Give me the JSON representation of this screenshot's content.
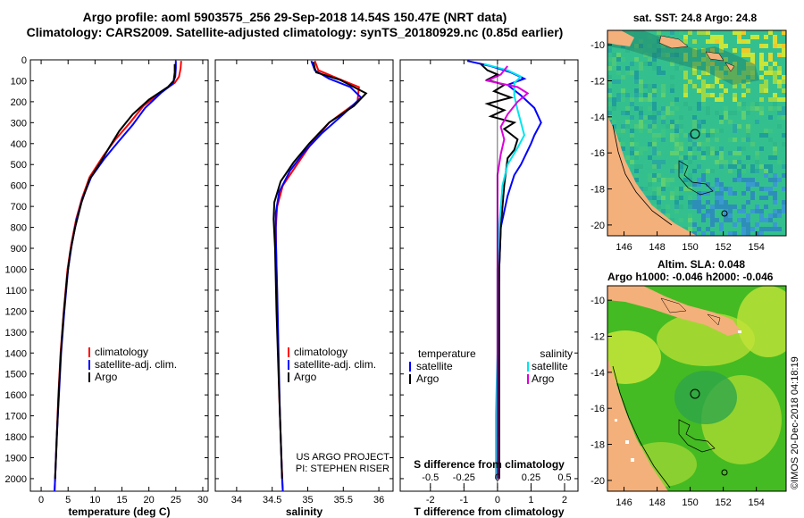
{
  "title_line1": "Argo profile: aoml 5903575_256 29-Sep-2018 14.54S 150.47E (NRT data)",
  "title_line2": "Climatology: CARS2009. Satellite-adjusted climatology: synTS_20180929.nc (0.85d earlier)",
  "colors": {
    "climatology": "#ff0000",
    "satellite": "#0000ff",
    "argo": "#000000",
    "sat_salinity": "#00e5ee",
    "argo_salinity": "#dd00dd"
  },
  "chart_data": [
    {
      "type": "line",
      "name": "temperature-profile",
      "xlabel": "temperature (deg C)",
      "xlim": [
        -2,
        31
      ],
      "ylim": [
        2060,
        0
      ],
      "xticks": [
        0,
        5,
        10,
        15,
        20,
        25,
        30
      ],
      "yticks": [
        0,
        100,
        200,
        300,
        400,
        500,
        600,
        700,
        800,
        900,
        1000,
        1100,
        1200,
        1300,
        1400,
        1500,
        1600,
        1700,
        1800,
        1900,
        2000
      ],
      "legend": [
        "climatology",
        "satellite-adj. clim.",
        "Argo"
      ],
      "series": [
        {
          "name": "climatology",
          "color": "#ff0000",
          "points": [
            [
              26.0,
              5
            ],
            [
              25.9,
              40
            ],
            [
              25.6,
              80
            ],
            [
              24.8,
              110
            ],
            [
              22.5,
              150
            ],
            [
              19.0,
              220
            ],
            [
              16.5,
              300
            ],
            [
              13.8,
              380
            ],
            [
              11.5,
              460
            ],
            [
              9.0,
              560
            ],
            [
              7.6,
              660
            ],
            [
              6.5,
              760
            ],
            [
              5.6,
              880
            ],
            [
              4.9,
              1000
            ],
            [
              4.2,
              1200
            ],
            [
              3.6,
              1400
            ],
            [
              3.2,
              1600
            ],
            [
              2.9,
              1800
            ],
            [
              2.6,
              2000
            ],
            [
              2.5,
              2060
            ]
          ]
        },
        {
          "name": "satellite-adj. clim.",
          "color": "#0000ff",
          "points": [
            [
              25.0,
              5
            ],
            [
              25.0,
              40
            ],
            [
              24.9,
              80
            ],
            [
              24.4,
              115
            ],
            [
              22.4,
              155
            ],
            [
              19.3,
              230
            ],
            [
              17.0,
              310
            ],
            [
              14.2,
              395
            ],
            [
              11.8,
              470
            ],
            [
              9.3,
              560
            ],
            [
              7.7,
              660
            ],
            [
              6.6,
              760
            ],
            [
              5.7,
              880
            ],
            [
              5.0,
              1000
            ],
            [
              4.3,
              1200
            ],
            [
              3.7,
              1400
            ],
            [
              3.3,
              1600
            ],
            [
              2.9,
              1800
            ],
            [
              2.6,
              2000
            ],
            [
              2.5,
              2060
            ]
          ]
        },
        {
          "name": "Argo",
          "color": "#000000",
          "points": [
            [
              24.8,
              20
            ],
            [
              24.8,
              60
            ],
            [
              24.6,
              100
            ],
            [
              23.5,
              130
            ],
            [
              20.0,
              190
            ],
            [
              17.0,
              260
            ],
            [
              14.5,
              340
            ],
            [
              12.6,
              420
            ],
            [
              11.0,
              490
            ],
            [
              9.0,
              570
            ],
            [
              7.5,
              680
            ],
            [
              6.3,
              800
            ],
            [
              5.4,
              920
            ],
            [
              4.8,
              1040
            ],
            [
              4.1,
              1240
            ],
            [
              3.6,
              1420
            ],
            [
              3.2,
              1620
            ],
            [
              2.9,
              1820
            ],
            [
              2.6,
              2000
            ]
          ]
        }
      ]
    },
    {
      "type": "line",
      "name": "salinity-profile",
      "xlabel": "salinity",
      "xlim": [
        33.7,
        36.2
      ],
      "ylim": [
        2060,
        0
      ],
      "xticks": [
        34,
        34.5,
        35,
        35.5,
        36
      ],
      "legend": [
        "climatology",
        "satellite-adj. clim.",
        "Argo"
      ],
      "credit": [
        "US ARGO PROJECT",
        "PI: STEPHEN RISER"
      ],
      "series": [
        {
          "name": "climatology",
          "color": "#ff0000",
          "points": [
            [
              35.1,
              5
            ],
            [
              35.15,
              50
            ],
            [
              35.5,
              100
            ],
            [
              35.72,
              130
            ],
            [
              35.7,
              200
            ],
            [
              35.3,
              300
            ],
            [
              35.05,
              400
            ],
            [
              34.85,
              500
            ],
            [
              34.65,
              600
            ],
            [
              34.57,
              700
            ],
            [
              34.55,
              800
            ],
            [
              34.56,
              1000
            ],
            [
              34.58,
              1300
            ],
            [
              34.6,
              1600
            ],
            [
              34.63,
              1900
            ],
            [
              34.65,
              2060
            ]
          ]
        },
        {
          "name": "satellite-adj. clim.",
          "color": "#0000ff",
          "points": [
            [
              35.05,
              5
            ],
            [
              35.1,
              50
            ],
            [
              35.3,
              90
            ],
            [
              35.6,
              130
            ],
            [
              35.75,
              180
            ],
            [
              35.5,
              260
            ],
            [
              35.2,
              350
            ],
            [
              34.95,
              440
            ],
            [
              34.75,
              530
            ],
            [
              34.6,
              630
            ],
            [
              34.55,
              730
            ],
            [
              34.55,
              850
            ],
            [
              34.57,
              1100
            ],
            [
              34.59,
              1400
            ],
            [
              34.61,
              1700
            ],
            [
              34.64,
              2000
            ],
            [
              34.65,
              2060
            ]
          ]
        },
        {
          "name": "Argo",
          "color": "#000000",
          "points": [
            [
              35.08,
              10
            ],
            [
              35.1,
              40
            ],
            [
              35.12,
              60
            ],
            [
              35.45,
              95
            ],
            [
              35.82,
              160
            ],
            [
              35.65,
              220
            ],
            [
              35.3,
              300
            ],
            [
              35.02,
              400
            ],
            [
              34.8,
              490
            ],
            [
              34.62,
              580
            ],
            [
              34.53,
              680
            ],
            [
              34.52,
              760
            ],
            [
              34.54,
              900
            ],
            [
              34.56,
              1200
            ],
            [
              34.59,
              1500
            ],
            [
              34.62,
              1800
            ],
            [
              34.64,
              2000
            ]
          ]
        }
      ]
    },
    {
      "type": "line",
      "name": "difference-profile",
      "xlabel": "T difference from climatology",
      "xlabel2": "S difference from climatology",
      "xlim": [
        -2.9,
        2.4
      ],
      "ylim": [
        2060,
        0
      ],
      "xticks": [
        -2,
        -1,
        0,
        1,
        2
      ],
      "xticks2": [
        -0.5,
        -0.25,
        0,
        0.25,
        0.5
      ],
      "xticks2_labels": [
        "-0.5",
        "-0.25",
        "0",
        "0.25",
        "0.5"
      ],
      "legend_left_title": "temperature",
      "legend_left": [
        "satellite",
        "Argo"
      ],
      "legend_right_title": "salinity",
      "legend_right": [
        "satellite",
        "Argo"
      ],
      "series": [
        {
          "name": "T satellite",
          "color": "#0000ff",
          "points": [
            [
              -0.9,
              5
            ],
            [
              -0.2,
              30
            ],
            [
              0.4,
              60
            ],
            [
              0.8,
              90
            ],
            [
              0.3,
              120
            ],
            [
              0.7,
              170
            ],
            [
              1.1,
              230
            ],
            [
              1.3,
              300
            ],
            [
              1.1,
              360
            ],
            [
              1.0,
              400
            ],
            [
              0.7,
              500
            ],
            [
              0.5,
              550
            ],
            [
              0.3,
              650
            ],
            [
              0.1,
              800
            ],
            [
              0.05,
              1000
            ],
            [
              0.0,
              1500
            ],
            [
              0.0,
              1800
            ]
          ]
        },
        {
          "name": "T Argo",
          "color": "#000000",
          "points": [
            [
              -0.5,
              20
            ],
            [
              -0.3,
              50
            ],
            [
              0.0,
              70
            ],
            [
              -0.3,
              95
            ],
            [
              0.2,
              120
            ],
            [
              -0.1,
              150
            ],
            [
              0.4,
              180
            ],
            [
              -0.3,
              210
            ],
            [
              0.2,
              240
            ],
            [
              -0.2,
              270
            ],
            [
              0.5,
              300
            ],
            [
              0.2,
              330
            ],
            [
              0.6,
              380
            ],
            [
              0.5,
              430
            ],
            [
              0.3,
              470
            ],
            [
              0.2,
              600
            ],
            [
              0.1,
              800
            ],
            [
              0.05,
              1000
            ],
            [
              0.05,
              1300
            ],
            [
              0.05,
              1600
            ],
            [
              0.05,
              2000
            ]
          ]
        },
        {
          "name": "S satellite",
          "color": "#00e5ee",
          "points": [
            [
              -0.4,
              20
            ],
            [
              0.3,
              50
            ],
            [
              0.7,
              80
            ],
            [
              0.5,
              110
            ],
            [
              0.5,
              170
            ],
            [
              0.6,
              240
            ],
            [
              0.7,
              300
            ],
            [
              0.8,
              360
            ],
            [
              0.6,
              420
            ],
            [
              0.3,
              500
            ],
            [
              0.15,
              600
            ],
            [
              0.05,
              800
            ],
            [
              0.0,
              1000
            ],
            [
              0.0,
              1400
            ],
            [
              -0.05,
              1700
            ],
            [
              -0.05,
              2000
            ]
          ]
        },
        {
          "name": "S Argo",
          "color": "#dd00dd",
          "points": [
            [
              0.3,
              30
            ],
            [
              0.1,
              70
            ],
            [
              -0.3,
              100
            ],
            [
              0.6,
              130
            ],
            [
              0.9,
              160
            ],
            [
              0.6,
              200
            ],
            [
              0.3,
              260
            ],
            [
              0.1,
              320
            ],
            [
              0.2,
              380
            ],
            [
              0.1,
              450
            ],
            [
              0.0,
              550
            ],
            [
              0.0,
              700
            ],
            [
              0.0,
              1000
            ],
            [
              0.0,
              1400
            ],
            [
              0.0,
              1800
            ],
            [
              0.0,
              2000
            ]
          ]
        }
      ]
    },
    {
      "type": "heatmap",
      "name": "sst-map",
      "title": "sat. SST: 24.8 Argo: 24.8",
      "xticks": [
        "146",
        "148",
        "150",
        "152",
        "154"
      ],
      "yticks": [
        "-10",
        "-12",
        "-14",
        "-16",
        "-18",
        "-20"
      ]
    },
    {
      "type": "heatmap",
      "name": "sla-map",
      "title1": "Altim. SLA: 0.048",
      "title2": "Argo h1000: -0.046 h2000: -0.046",
      "xticks": [
        "146",
        "148",
        "150",
        "152",
        "154"
      ],
      "yticks": [
        "-10",
        "-12",
        "-14",
        "-16",
        "-18",
        "-20"
      ]
    }
  ],
  "watermark": "©IMOS 20-Dec-2018 04:18:19"
}
